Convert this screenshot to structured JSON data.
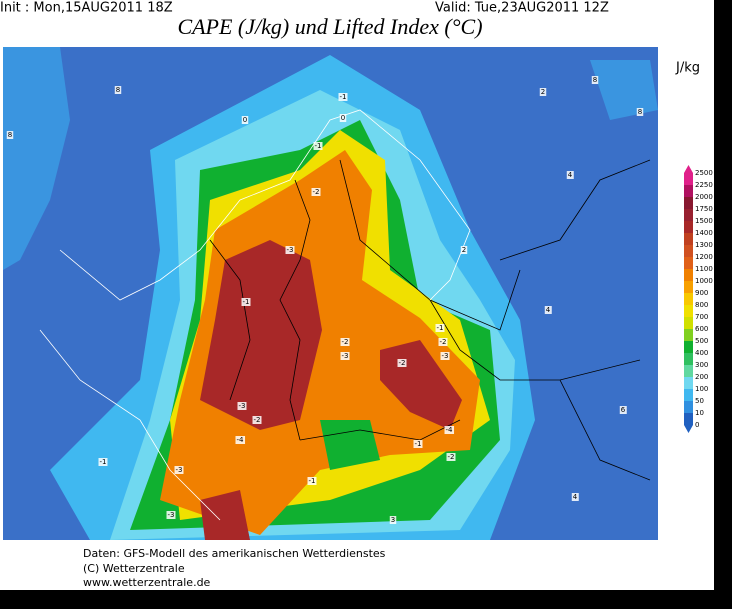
{
  "header": {
    "init": "Init : Mon,15AUG2011 18Z",
    "valid": "Valid: Tue,23AUG2011 12Z",
    "title": "CAPE (J/kg) und Lifted Index (°C)"
  },
  "legend": {
    "unit": "J/kg",
    "levels": [
      "0",
      "10",
      "50",
      "100",
      "200",
      "300",
      "400",
      "500",
      "600",
      "700",
      "800",
      "900",
      "1000",
      "1100",
      "1200",
      "1300",
      "1400",
      "1500",
      "1750",
      "2000",
      "2250",
      "2500"
    ],
    "colors": [
      "#2060c0",
      "#3090e0",
      "#40b8f0",
      "#70d8f0",
      "#60d8a0",
      "#30c060",
      "#10b030",
      "#80d020",
      "#d0e000",
      "#f0e000",
      "#f8c800",
      "#f8a000",
      "#f08000",
      "#e06018",
      "#d05020",
      "#c04020",
      "#a82828",
      "#982030",
      "#881830",
      "#b01060",
      "#e0208a"
    ]
  },
  "map": {
    "lifted_index_labels": [
      "8",
      "0",
      "8",
      "-1",
      "0",
      "-1",
      "-2",
      "-3",
      "-1",
      "-2",
      "-3",
      "-2",
      "-1",
      "-2",
      "-3",
      "-3",
      "-2",
      "-4",
      "-1",
      "-1",
      "-3",
      "-4",
      "-2",
      "-1",
      "-3",
      "2",
      "4",
      "6",
      "8",
      "4",
      "8",
      "2",
      "3",
      "4"
    ]
  },
  "footer": {
    "line1": "Daten: GFS-Modell des amerikanischen Wetterdienstes",
    "line2": "(C) Wetterzentrale",
    "line3": "www.wetterzentrale.de"
  }
}
